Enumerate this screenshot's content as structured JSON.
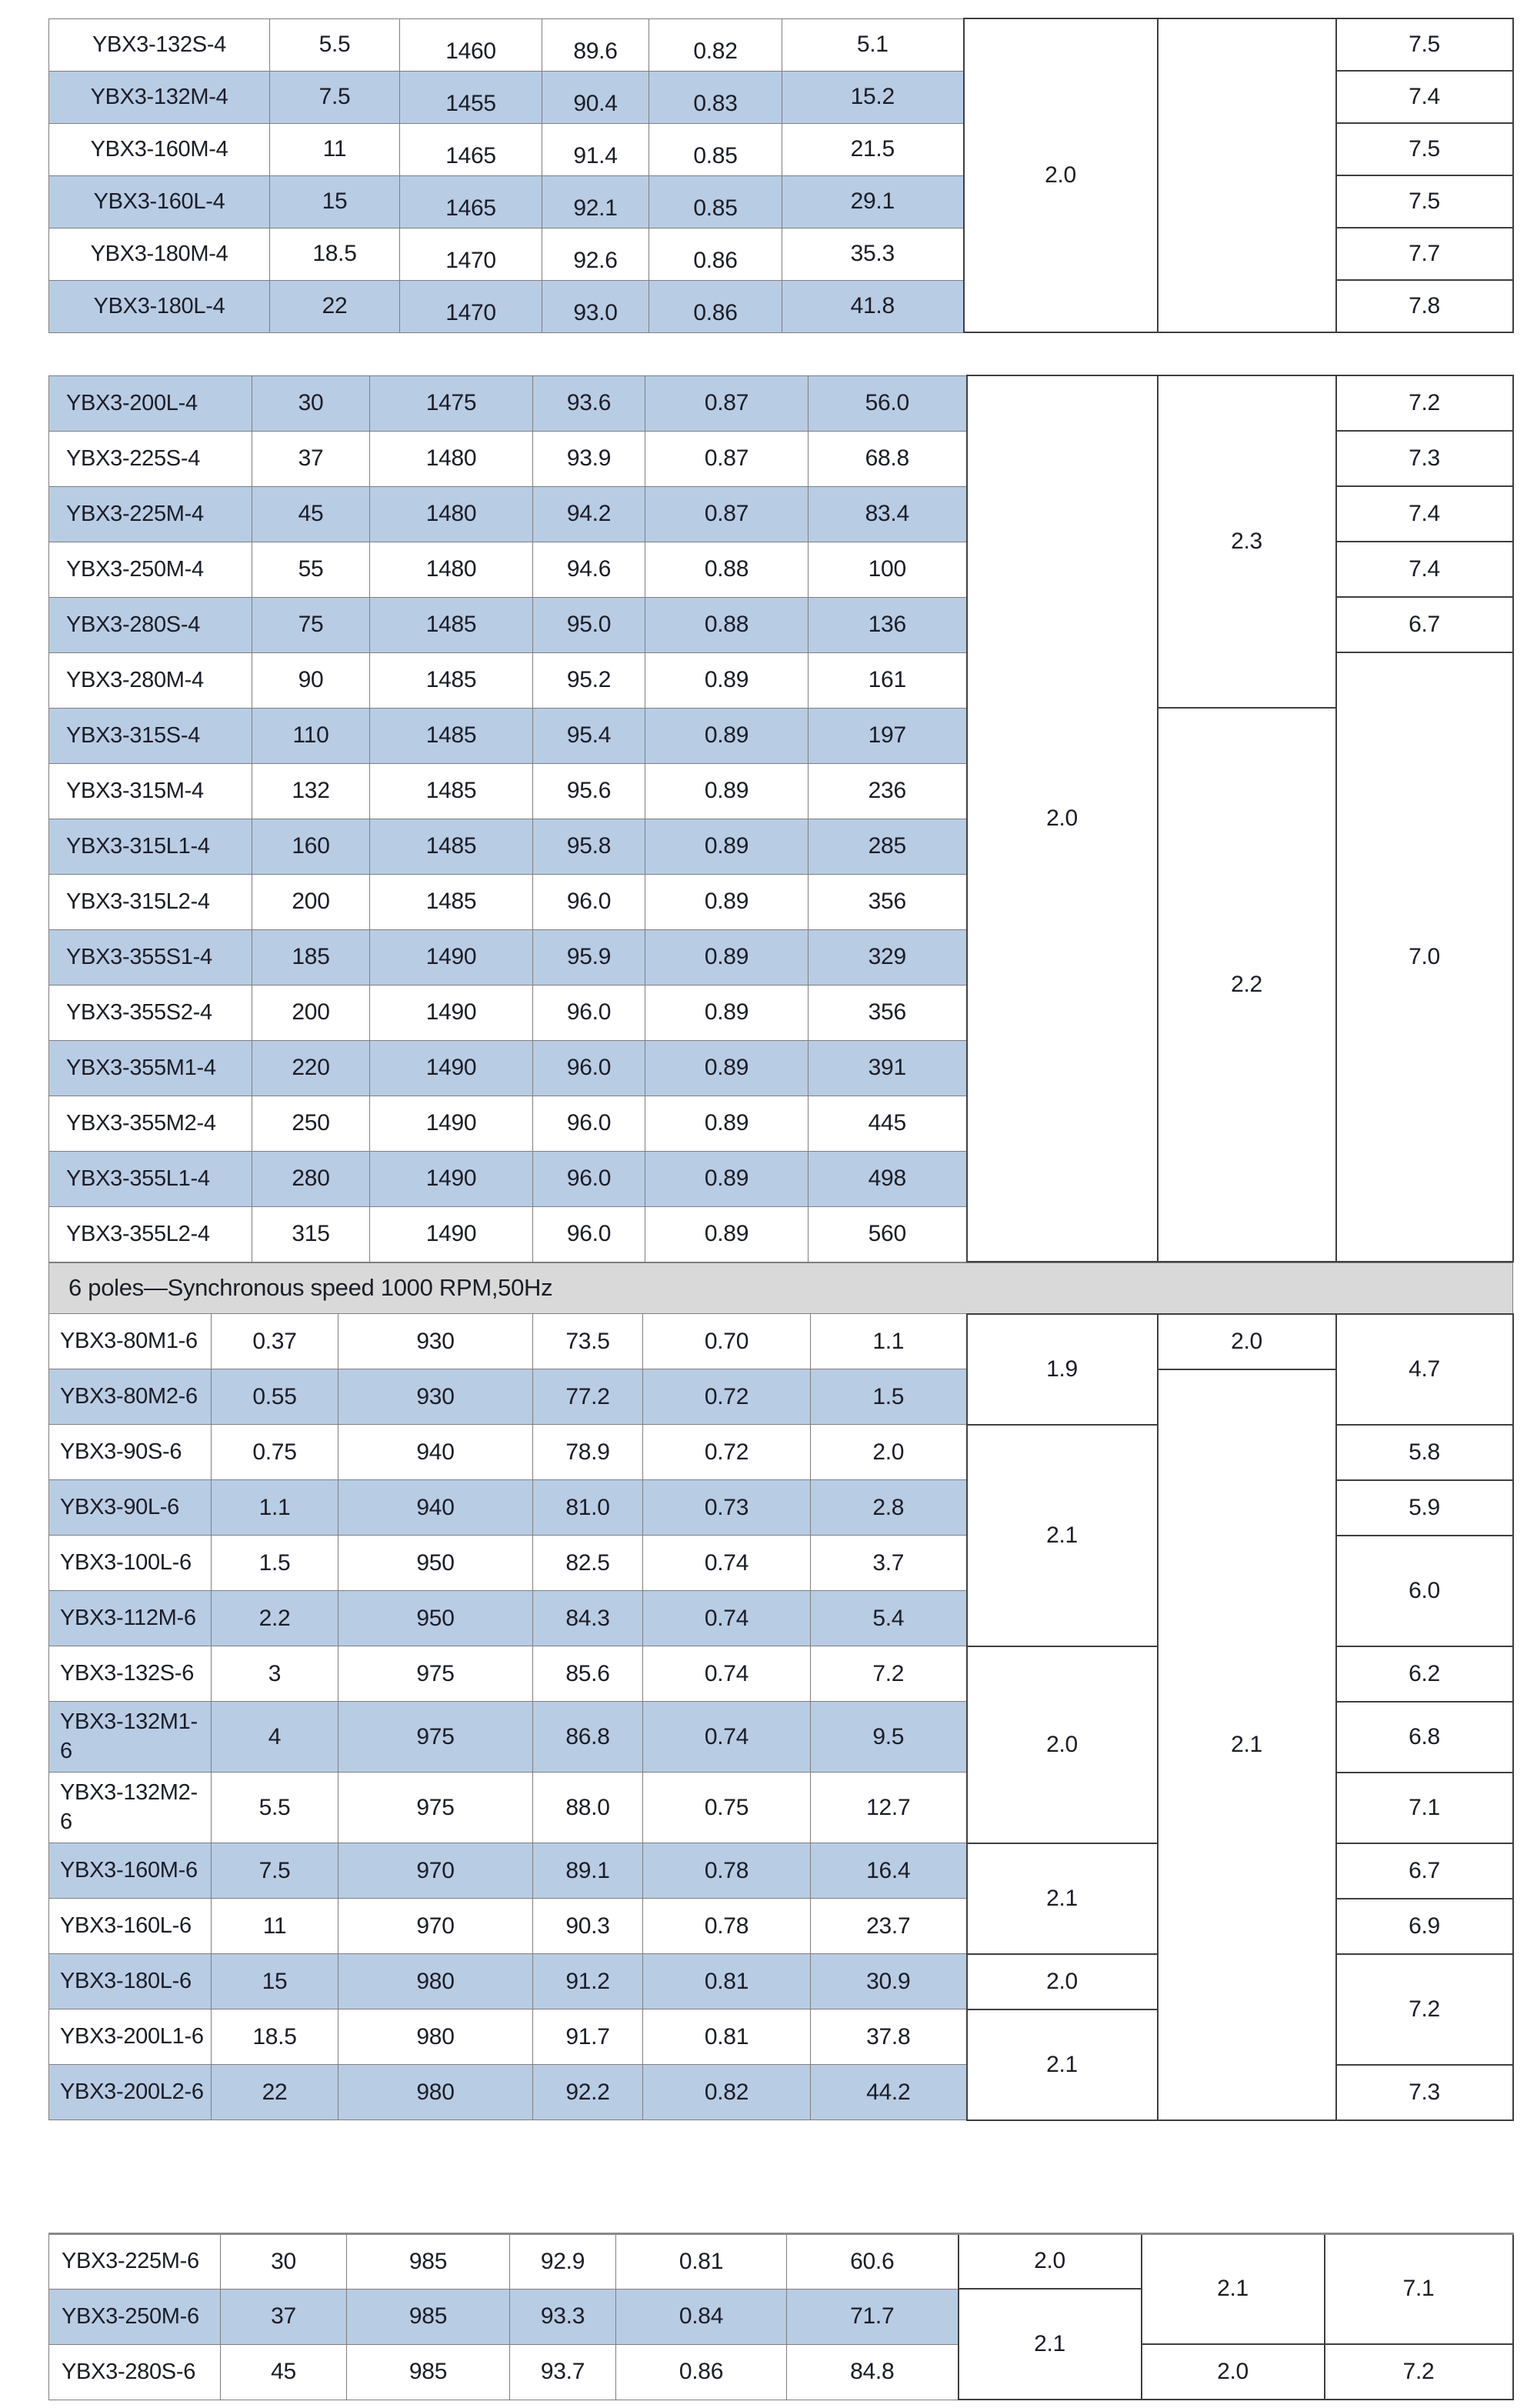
{
  "page": {
    "background": "#ffffff"
  },
  "colors": {
    "row_highlight": "#b8cce4",
    "band_background": "#d9d9d9",
    "grid_light": "#7f7f7f",
    "grid_dark": "#3f3f3f",
    "text": "#1b1d26"
  },
  "band": {
    "label": "6 poles—Synchronous speed 1000 RPM,50Hz"
  },
  "sections": [
    {
      "name": "four-pole-continued",
      "rows": [
        {
          "model": "YBX3-132S-4",
          "power": "5.5",
          "rpm": "1460",
          "efficiency": "89.6",
          "power_factor": "0.82",
          "current": "5.1",
          "shaded": false
        },
        {
          "model": "YBX3-132M-4",
          "power": "7.5",
          "rpm": "1455",
          "efficiency": "90.4",
          "power_factor": "0.83",
          "current": "15.2",
          "shaded": true
        },
        {
          "model": "YBX3-160M-4",
          "power": "11",
          "rpm": "1465",
          "efficiency": "91.4",
          "power_factor": "0.85",
          "current": "21.5",
          "shaded": false
        },
        {
          "model": "YBX3-160L-4",
          "power": "15",
          "rpm": "1465",
          "efficiency": "92.1",
          "power_factor": "0.85",
          "current": "29.1",
          "shaded": true
        },
        {
          "model": "YBX3-180M-4",
          "power": "18.5",
          "rpm": "1470",
          "efficiency": "92.6",
          "power_factor": "0.86",
          "current": "35.3",
          "shaded": false
        },
        {
          "model": "YBX3-180L-4",
          "power": "22",
          "rpm": "1470",
          "efficiency": "93.0",
          "power_factor": "0.86",
          "current": "41.8",
          "shaded": true
        }
      ],
      "merged": {
        "col7": [
          {
            "at": 0,
            "span": 6,
            "value": "2.0"
          }
        ],
        "col8": [
          {
            "at": 0,
            "span": 6,
            "value": ""
          }
        ],
        "col9": [
          {
            "at": 0,
            "span": 1,
            "value": "7.5"
          },
          {
            "at": 1,
            "span": 1,
            "value": "7.4"
          },
          {
            "at": 2,
            "span": 1,
            "value": "7.5"
          },
          {
            "at": 3,
            "span": 1,
            "value": "7.5"
          },
          {
            "at": 4,
            "span": 1,
            "value": "7.7"
          },
          {
            "at": 5,
            "span": 1,
            "value": "7.8"
          }
        ]
      }
    },
    {
      "name": "four-pole-large",
      "rows": [
        {
          "model": "YBX3-200L-4",
          "power": "30",
          "rpm": "1475",
          "efficiency": "93.6",
          "power_factor": "0.87",
          "current": "56.0",
          "shaded": true
        },
        {
          "model": "YBX3-225S-4",
          "power": "37",
          "rpm": "1480",
          "efficiency": "93.9",
          "power_factor": "0.87",
          "current": "68.8",
          "shaded": false
        },
        {
          "model": "YBX3-225M-4",
          "power": "45",
          "rpm": "1480",
          "efficiency": "94.2",
          "power_factor": "0.87",
          "current": "83.4",
          "shaded": true
        },
        {
          "model": "YBX3-250M-4",
          "power": "55",
          "rpm": "1480",
          "efficiency": "94.6",
          "power_factor": "0.88",
          "current": "100",
          "shaded": false
        },
        {
          "model": "YBX3-280S-4",
          "power": "75",
          "rpm": "1485",
          "efficiency": "95.0",
          "power_factor": "0.88",
          "current": "136",
          "shaded": true
        },
        {
          "model": "YBX3-280M-4",
          "power": "90",
          "rpm": "1485",
          "efficiency": "95.2",
          "power_factor": "0.89",
          "current": "161",
          "shaded": false
        },
        {
          "model": "YBX3-315S-4",
          "power": "110",
          "rpm": "1485",
          "efficiency": "95.4",
          "power_factor": "0.89",
          "current": "197",
          "shaded": true
        },
        {
          "model": "YBX3-315M-4",
          "power": "132",
          "rpm": "1485",
          "efficiency": "95.6",
          "power_factor": "0.89",
          "current": "236",
          "shaded": false
        },
        {
          "model": "YBX3-315L1-4",
          "power": "160",
          "rpm": "1485",
          "efficiency": "95.8",
          "power_factor": "0.89",
          "current": "285",
          "shaded": true
        },
        {
          "model": "YBX3-315L2-4",
          "power": "200",
          "rpm": "1485",
          "efficiency": "96.0",
          "power_factor": "0.89",
          "current": "356",
          "shaded": false
        },
        {
          "model": "YBX3-355S1-4",
          "power": "185",
          "rpm": "1490",
          "efficiency": "95.9",
          "power_factor": "0.89",
          "current": "329",
          "shaded": true
        },
        {
          "model": "YBX3-355S2-4",
          "power": "200",
          "rpm": "1490",
          "efficiency": "96.0",
          "power_factor": "0.89",
          "current": "356",
          "shaded": false
        },
        {
          "model": "YBX3-355M1-4",
          "power": "220",
          "rpm": "1490",
          "efficiency": "96.0",
          "power_factor": "0.89",
          "current": "391",
          "shaded": true
        },
        {
          "model": "YBX3-355M2-4",
          "power": "250",
          "rpm": "1490",
          "efficiency": "96.0",
          "power_factor": "0.89",
          "current": "445",
          "shaded": false
        },
        {
          "model": "YBX3-355L1-4",
          "power": "280",
          "rpm": "1490",
          "efficiency": "96.0",
          "power_factor": "0.89",
          "current": "498",
          "shaded": true
        },
        {
          "model": "YBX3-355L2-4",
          "power": "315",
          "rpm": "1490",
          "efficiency": "96.0",
          "power_factor": "0.89",
          "current": "560",
          "shaded": false
        }
      ],
      "merged": {
        "col7": [
          {
            "at": 0,
            "span": 16,
            "value": "2.0"
          }
        ],
        "col8": [
          {
            "at": 0,
            "span": 6,
            "value": "2.3"
          },
          {
            "at": 6,
            "span": 10,
            "value": "2.2"
          }
        ],
        "col9": [
          {
            "at": 0,
            "span": 1,
            "value": "7.2"
          },
          {
            "at": 1,
            "span": 1,
            "value": "7.3"
          },
          {
            "at": 2,
            "span": 1,
            "value": "7.4"
          },
          {
            "at": 3,
            "span": 1,
            "value": "7.4"
          },
          {
            "at": 4,
            "span": 1,
            "value": "6.7"
          },
          {
            "at": 5,
            "span": 11,
            "value": "7.0"
          }
        ]
      }
    },
    {
      "name": "six-pole",
      "rows": [
        {
          "model": "YBX3-80M1-6",
          "power": "0.37",
          "rpm": "930",
          "efficiency": "73.5",
          "power_factor": "0.70",
          "current": "1.1",
          "shaded": false
        },
        {
          "model": "YBX3-80M2-6",
          "power": "0.55",
          "rpm": "930",
          "efficiency": "77.2",
          "power_factor": "0.72",
          "current": "1.5",
          "shaded": true
        },
        {
          "model": "YBX3-90S-6",
          "power": "0.75",
          "rpm": "940",
          "efficiency": "78.9",
          "power_factor": "0.72",
          "current": "2.0",
          "shaded": false
        },
        {
          "model": "YBX3-90L-6",
          "power": "1.1",
          "rpm": "940",
          "efficiency": "81.0",
          "power_factor": "0.73",
          "current": "2.8",
          "shaded": true
        },
        {
          "model": "YBX3-100L-6",
          "power": "1.5",
          "rpm": "950",
          "efficiency": "82.5",
          "power_factor": "0.74",
          "current": "3.7",
          "shaded": false
        },
        {
          "model": "YBX3-112M-6",
          "power": "2.2",
          "rpm": "950",
          "efficiency": "84.3",
          "power_factor": "0.74",
          "current": "5.4",
          "shaded": true
        },
        {
          "model": "YBX3-132S-6",
          "power": "3",
          "rpm": "975",
          "efficiency": "85.6",
          "power_factor": "0.74",
          "current": "7.2",
          "shaded": false
        },
        {
          "model": "YBX3-132M1-6",
          "power": "4",
          "rpm": "975",
          "efficiency": "86.8",
          "power_factor": "0.74",
          "current": "9.5",
          "shaded": true
        },
        {
          "model": "YBX3-132M2-6",
          "power": "5.5",
          "rpm": "975",
          "efficiency": "88.0",
          "power_factor": "0.75",
          "current": "12.7",
          "shaded": false
        },
        {
          "model": "YBX3-160M-6",
          "power": "7.5",
          "rpm": "970",
          "efficiency": "89.1",
          "power_factor": "0.78",
          "current": "16.4",
          "shaded": true
        },
        {
          "model": "YBX3-160L-6",
          "power": "11",
          "rpm": "970",
          "efficiency": "90.3",
          "power_factor": "0.78",
          "current": "23.7",
          "shaded": false
        },
        {
          "model": "YBX3-180L-6",
          "power": "15",
          "rpm": "980",
          "efficiency": "91.2",
          "power_factor": "0.81",
          "current": "30.9",
          "shaded": true
        },
        {
          "model": "YBX3-200L1-6",
          "power": "18.5",
          "rpm": "980",
          "efficiency": "91.7",
          "power_factor": "0.81",
          "current": "37.8",
          "shaded": false
        },
        {
          "model": "YBX3-200L2-6",
          "power": "22",
          "rpm": "980",
          "efficiency": "92.2",
          "power_factor": "0.82",
          "current": "44.2",
          "shaded": true
        }
      ],
      "merged": {
        "col7": [
          {
            "at": 0,
            "span": 2,
            "value": "1.9"
          },
          {
            "at": 2,
            "span": 4,
            "value": "2.1"
          },
          {
            "at": 6,
            "span": 3,
            "value": "2.0"
          },
          {
            "at": 9,
            "span": 2,
            "value": "2.1"
          },
          {
            "at": 11,
            "span": 1,
            "value": "2.0"
          },
          {
            "at": 12,
            "span": 2,
            "value": "2.1"
          }
        ],
        "col8": [
          {
            "at": 0,
            "span": 1,
            "value": "2.0"
          },
          {
            "at": 1,
            "span": 13,
            "value": "2.1"
          }
        ],
        "col9": [
          {
            "at": 0,
            "span": 2,
            "value": "4.7"
          },
          {
            "at": 2,
            "span": 1,
            "value": "5.8"
          },
          {
            "at": 3,
            "span": 1,
            "value": "5.9"
          },
          {
            "at": 4,
            "span": 2,
            "value": "6.0"
          },
          {
            "at": 6,
            "span": 1,
            "value": "6.2"
          },
          {
            "at": 7,
            "span": 1,
            "value": "6.8"
          },
          {
            "at": 8,
            "span": 1,
            "value": "7.1"
          },
          {
            "at": 9,
            "span": 1,
            "value": "6.7"
          },
          {
            "at": 10,
            "span": 1,
            "value": "6.9"
          },
          {
            "at": 11,
            "span": 2,
            "value": "7.2"
          },
          {
            "at": 13,
            "span": 1,
            "value": "7.3"
          }
        ]
      }
    },
    {
      "name": "six-pole-large",
      "rows": [
        {
          "model": "YBX3-225M-6",
          "power": "30",
          "rpm": "985",
          "efficiency": "92.9",
          "power_factor": "0.81",
          "current": "60.6",
          "shaded": false
        },
        {
          "model": "YBX3-250M-6",
          "power": "37",
          "rpm": "985",
          "efficiency": "93.3",
          "power_factor": "0.84",
          "current": "71.7",
          "shaded": true
        },
        {
          "model": "YBX3-280S-6",
          "power": "45",
          "rpm": "985",
          "efficiency": "93.7",
          "power_factor": "0.86",
          "current": "84.8",
          "shaded": false
        }
      ],
      "merged": {
        "col7": [
          {
            "at": 0,
            "span": 1,
            "value": "2.0"
          },
          {
            "at": 1,
            "span": 2,
            "value": "2.1"
          }
        ],
        "col8": [
          {
            "at": 0,
            "span": 2,
            "value": "2.1"
          },
          {
            "at": 2,
            "span": 1,
            "value": "2.0"
          }
        ],
        "col9": [
          {
            "at": 0,
            "span": 2,
            "value": "7.1"
          },
          {
            "at": 2,
            "span": 1,
            "value": "7.2"
          }
        ]
      }
    }
  ]
}
